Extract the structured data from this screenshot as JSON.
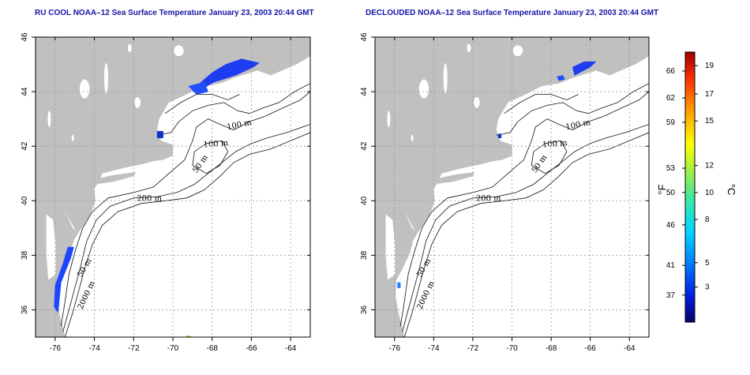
{
  "panels": [
    {
      "title": "RU COOL NOAA–12 Sea Surface Temperature January 23, 2003 20:44 GMT"
    },
    {
      "title": "DECLOUDED NOAA–12 Sea Surface Temperature January 23, 2003 20:44 GMT"
    }
  ],
  "map": {
    "lon_range": [
      -77,
      -63
    ],
    "lat_range": [
      35,
      46
    ],
    "lon_ticks": [
      "-76",
      "-74",
      "-72",
      "-70",
      "-68",
      "-66",
      "-64"
    ],
    "lat_ticks": [
      "36",
      "38",
      "40",
      "42",
      "44",
      "46"
    ],
    "land_color": "#c0c0c0",
    "ocean_color": "#ffffff",
    "grid": "dotted",
    "contour_labels": [
      "100 m",
      "100 m",
      "50 m",
      "200 m",
      "50 m",
      "2000 m"
    ]
  },
  "colorbar": {
    "fahrenheit_ticks": [
      "66",
      "62",
      "59",
      "53",
      "50",
      "46",
      "41",
      "37"
    ],
    "celsius_ticks": [
      "19",
      "17",
      "15",
      "12",
      "10",
      "8",
      "5",
      "3"
    ],
    "fahrenheit_unit": "°F",
    "celsius_unit": "°C",
    "colors": [
      "#08006a",
      "#0020e0",
      "#0080ff",
      "#00d8ff",
      "#40e8a0",
      "#a0f040",
      "#ffff00",
      "#ffa000",
      "#ff3000",
      "#a00000"
    ]
  }
}
